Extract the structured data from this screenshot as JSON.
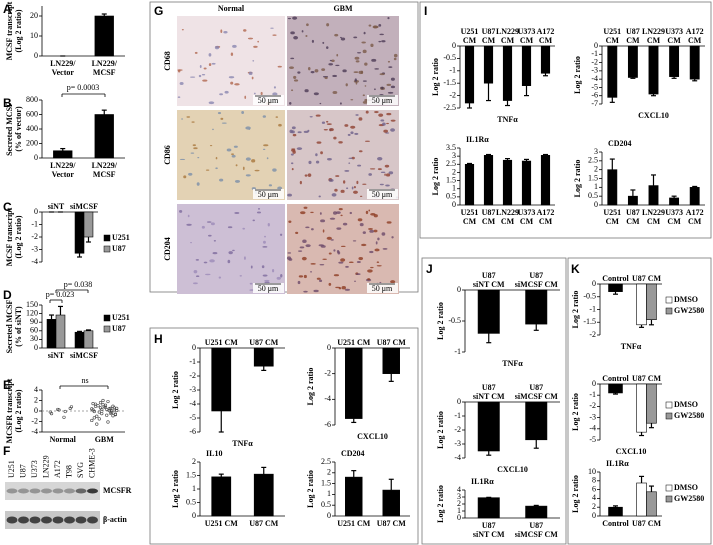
{
  "chart_data": [
    {
      "type": "bar",
      "panel": "A",
      "ylabel": "MCSF transcript\n(Log 2 ratio)",
      "categories": [
        "LN229/\nVector",
        "LN229/\nMCSF"
      ],
      "values": [
        0,
        20
      ],
      "errors": [
        0,
        1
      ],
      "color": "#000000",
      "ylim": [
        0,
        25
      ],
      "yticks": [
        0,
        10,
        20
      ]
    },
    {
      "type": "bar",
      "panel": "B",
      "ylabel": "Secreted MCSF\n(% of vector)",
      "categories": [
        "LN229/\nVector",
        "LN229/\nMCSF"
      ],
      "values": [
        100,
        600
      ],
      "errors": [
        30,
        60
      ],
      "color": "#000000",
      "ylim": [
        0,
        800
      ],
      "yticks": [
        0,
        200,
        400,
        600,
        800
      ],
      "annotations": [
        "p= 0.0003"
      ]
    },
    {
      "type": "bar",
      "panel": "C",
      "ylabel": "MCSF transcript\n(Log 2 ratio)",
      "categories": [
        "siNT",
        "siMCSF"
      ],
      "series": [
        {
          "name": "U251",
          "color": "#000000",
          "values": [
            0,
            -3.3
          ],
          "errors": [
            0,
            0.3
          ]
        },
        {
          "name": "U87",
          "color": "#999999",
          "values": [
            0,
            -2
          ],
          "errors": [
            0,
            0.4
          ]
        }
      ],
      "ylim": [
        -4,
        0
      ],
      "yticks": [
        0,
        -1,
        -2,
        -3,
        -4
      ]
    },
    {
      "type": "bar",
      "panel": "D",
      "ylabel": "Secreted MCSF\n(% of siNT)",
      "categories": [
        "siNT",
        "siMCSF"
      ],
      "series": [
        {
          "name": "U251",
          "color": "#000000",
          "values": [
            100,
            55
          ],
          "errors": [
            15,
            3
          ]
        },
        {
          "name": "U87",
          "color": "#999999",
          "values": [
            115,
            60
          ],
          "errors": [
            30,
            3
          ]
        }
      ],
      "ylim": [
        0,
        150
      ],
      "yticks": [
        0,
        30,
        60,
        90,
        120,
        150
      ],
      "annotations": [
        "p= 0.023",
        "p= 0.038"
      ]
    },
    {
      "type": "strip",
      "panel": "E",
      "ylabel": "MCSFR transcript\n(Log 2 ratio)",
      "categories": [
        "Normal",
        "GBM"
      ],
      "groups": [
        [
          -0.2,
          0.5,
          -1.2,
          0.3,
          -0.5,
          0.8,
          -0.1,
          0.2
        ],
        [
          0.4,
          -0.3,
          1.1,
          -1.5,
          0.2,
          0.9,
          -0.8,
          1.6,
          -0.1,
          0.6,
          -2.1,
          0.3,
          1.3,
          -0.6,
          0.1,
          2.0,
          -1.0,
          0.5,
          -0.4,
          0.8,
          1.0,
          -1.8,
          0.0,
          0.7,
          -0.2,
          1.4,
          -0.9,
          0.3,
          0.6,
          -1.3,
          0.2,
          1.8,
          -0.5,
          0.9,
          -0.7,
          0.4,
          1.2,
          -2.5,
          0.1,
          0.5
        ]
      ],
      "ylim": [
        -4,
        4
      ],
      "yticks": [
        -4,
        -2,
        0,
        2,
        4
      ],
      "annotations": [
        "ns"
      ]
    },
    {
      "type": "bar",
      "panel": "H",
      "title": "TNFα",
      "ylabel": "Log 2 ratio",
      "categories": [
        "U251 CM",
        "U87 CM"
      ],
      "values": [
        -4.5,
        -1.3
      ],
      "errors": [
        1.5,
        0.3
      ],
      "color": "#000000",
      "ylim": [
        -6,
        0
      ],
      "yticks": [
        0,
        -1,
        -2,
        -3,
        -4,
        -5,
        -6
      ]
    },
    {
      "type": "bar",
      "title": "CXCL10",
      "ylabel": "Log 2 ratio",
      "categories": [
        "U251 CM",
        "U87 CM"
      ],
      "values": [
        -5.5,
        -2
      ],
      "errors": [
        0.3,
        0.6
      ],
      "color": "#000000",
      "ylim": [
        -6,
        0
      ],
      "yticks": [
        0,
        -2,
        -4,
        -6
      ]
    },
    {
      "type": "bar",
      "title": "IL10",
      "ylabel": "Log 2 ratio",
      "categories": [
        "U251 CM",
        "U87 CM"
      ],
      "values": [
        1.45,
        1.55
      ],
      "errors": [
        0.1,
        0.25
      ],
      "color": "#000000",
      "ylim": [
        0,
        2
      ],
      "yticks": [
        0,
        0.5,
        1,
        1.5,
        2
      ]
    },
    {
      "type": "bar",
      "title": "CD204",
      "ylabel": "Log 2 ratio",
      "categories": [
        "U251 CM",
        "U87 CM"
      ],
      "values": [
        1.8,
        1.2
      ],
      "errors": [
        0.3,
        0.5
      ],
      "color": "#000000",
      "ylim": [
        0,
        2.5
      ],
      "yticks": [
        0,
        0.5,
        1,
        1.5,
        2,
        2.5
      ]
    },
    {
      "type": "bar",
      "panel": "I",
      "title": "TNFα",
      "ylabel": "Log 2 ratio",
      "categories": [
        "U251\nCM",
        "U87\nCM",
        "LN229\nCM",
        "U373\nCM",
        "A172\nCM"
      ],
      "values": [
        -2.3,
        -1.5,
        -2.2,
        -1.6,
        -1.1
      ],
      "errors": [
        0.2,
        0.7,
        0.2,
        0.4,
        0.1
      ],
      "color": "#000000",
      "ylim": [
        -2.5,
        0
      ],
      "yticks": [
        0,
        -0.5,
        -1,
        -1.5,
        -2,
        -2.5
      ]
    },
    {
      "type": "bar",
      "title": "CXCL10",
      "ylabel": "Log 2 ratio",
      "categories": [
        "U251\nCM",
        "U87\nCM",
        "LN229\nCM",
        "U373\nCM",
        "A172\nCM"
      ],
      "values": [
        -6.2,
        -3.8,
        -5.8,
        -3.7,
        -4
      ],
      "errors": [
        0.6,
        0.1,
        0.2,
        0.2,
        0.2
      ],
      "color": "#000000",
      "ylim": [
        -7,
        0
      ],
      "yticks": [
        0,
        -1,
        -2,
        -3,
        -4,
        -5,
        -6,
        -7
      ]
    },
    {
      "type": "bar",
      "title": "IL1Rα",
      "ylabel": "Log 2 ratio",
      "categories": [
        "U251\nCM",
        "U87\nCM",
        "LN229\nCM",
        "U373\nCM",
        "A172\nCM"
      ],
      "values": [
        2.5,
        3.05,
        2.75,
        2.7,
        3.05
      ],
      "errors": [
        0.05,
        0.05,
        0.1,
        0.1,
        0.05
      ],
      "color": "#000000",
      "ylim": [
        0,
        3.5
      ],
      "yticks": [
        0,
        0.5,
        1,
        1.5,
        2,
        2.5,
        3,
        3.5
      ]
    },
    {
      "type": "bar",
      "title": "CD204",
      "ylabel": "Log 2 ratio",
      "categories": [
        "U251\nCM",
        "U87\nCM",
        "LN229\nCM",
        "U373\nCM",
        "A172\nCM"
      ],
      "values": [
        2.0,
        0.5,
        1.1,
        0.4,
        1.0
      ],
      "errors": [
        0.6,
        0.35,
        0.6,
        0.1,
        0.05
      ],
      "color": "#000000",
      "ylim": [
        0,
        3
      ],
      "yticks": [
        0,
        0.5,
        1,
        1.5,
        2,
        2.5,
        3
      ]
    },
    {
      "type": "bar",
      "panel": "J",
      "title": "TNFα",
      "ylabel": "Log 2 ratio",
      "categories": [
        "U87\nsiNT CM",
        "U87\nsiMCSF CM"
      ],
      "values": [
        -0.7,
        -0.55
      ],
      "errors": [
        0.15,
        0.1
      ],
      "color": "#000000",
      "ylim": [
        -1,
        0
      ],
      "yticks": [
        0,
        -0.5,
        -1
      ]
    },
    {
      "type": "bar",
      "title": "CXCL10",
      "ylabel": "Log 2 ratio",
      "categories": [
        "U87\nsiNT CM",
        "U87\nsiMCSF CM"
      ],
      "values": [
        -3.5,
        -2.7
      ],
      "errors": [
        0.3,
        0.6
      ],
      "color": "#000000",
      "ylim": [
        -4,
        0
      ],
      "yticks": [
        0,
        -1,
        -2,
        -3,
        -4
      ]
    },
    {
      "type": "bar",
      "title": "IL1Rα",
      "ylabel": "Log 2 ratio",
      "categories": [
        "U87\nsiNT CM",
        "U87\nsiMCSF CM"
      ],
      "values": [
        2.9,
        1.7
      ],
      "errors": [
        0.05,
        0.1
      ],
      "color": "#000000",
      "ylim": [
        0,
        4
      ],
      "yticks": [
        0,
        1,
        2,
        3,
        4
      ]
    },
    {
      "type": "bar",
      "panel": "K",
      "title": "TNFα",
      "ylabel": "Log 2 ratio",
      "categories": [
        "Control",
        "U87 CM"
      ],
      "values": [
        -0.3,
        null
      ],
      "errors": [
        0.1,
        null
      ],
      "color": "#000000",
      "series": [
        {
          "name": "DMSO",
          "color": "#ffffff",
          "values": [
            null,
            -1.6
          ],
          "errors": [
            null,
            0.1
          ]
        },
        {
          "name": "GW2580",
          "color": "#999999",
          "values": [
            null,
            -1.4
          ],
          "errors": [
            null,
            0.2
          ]
        }
      ],
      "ylim": [
        -2,
        0
      ],
      "yticks": [
        0,
        -0.5,
        -1,
        -1.5,
        -2
      ]
    },
    {
      "type": "bar",
      "title": "CXCL10",
      "ylabel": "Log 2 ratio",
      "categories": [
        "Control",
        "U87 CM"
      ],
      "values": [
        -0.8,
        null
      ],
      "errors": [
        0.1,
        null
      ],
      "color": "#000000",
      "series": [
        {
          "name": "DMSO",
          "color": "#ffffff",
          "values": [
            null,
            -4.3
          ],
          "errors": [
            null,
            0.3
          ]
        },
        {
          "name": "GW2580",
          "color": "#999999",
          "values": [
            null,
            -3.5
          ],
          "errors": [
            null,
            0.4
          ]
        }
      ],
      "ylim": [
        -5,
        0
      ],
      "yticks": [
        0,
        -1,
        -2,
        -3,
        -4,
        -5
      ]
    },
    {
      "type": "bar",
      "title": "IL1Rα",
      "ylabel": "Log 2 ratio",
      "categories": [
        "Control",
        "U87 CM"
      ],
      "values": [
        2,
        null
      ],
      "errors": [
        0.3,
        null
      ],
      "color": "#000000",
      "series": [
        {
          "name": "DMSO",
          "color": "#ffffff",
          "values": [
            null,
            7.5
          ],
          "errors": [
            null,
            1.5
          ]
        },
        {
          "name": "GW2580",
          "color": "#999999",
          "values": [
            null,
            5.5
          ],
          "errors": [
            null,
            1.3
          ]
        }
      ],
      "ylim": [
        0,
        10
      ],
      "yticks": [
        0,
        2,
        4,
        6,
        8,
        10
      ]
    }
  ],
  "blot": {
    "panel": "F",
    "lanes": [
      "U251",
      "U87",
      "U373",
      "LN229",
      "A172",
      "T98",
      "SVG",
      "CHME-3"
    ],
    "bands": [
      "MCSFR",
      "β-actin"
    ]
  },
  "micrographs": {
    "panel": "G",
    "columns": [
      "Normal",
      "GBM"
    ],
    "rows": [
      "CD68",
      "CD86",
      "CD204"
    ],
    "scale_bar": "50 μm"
  }
}
